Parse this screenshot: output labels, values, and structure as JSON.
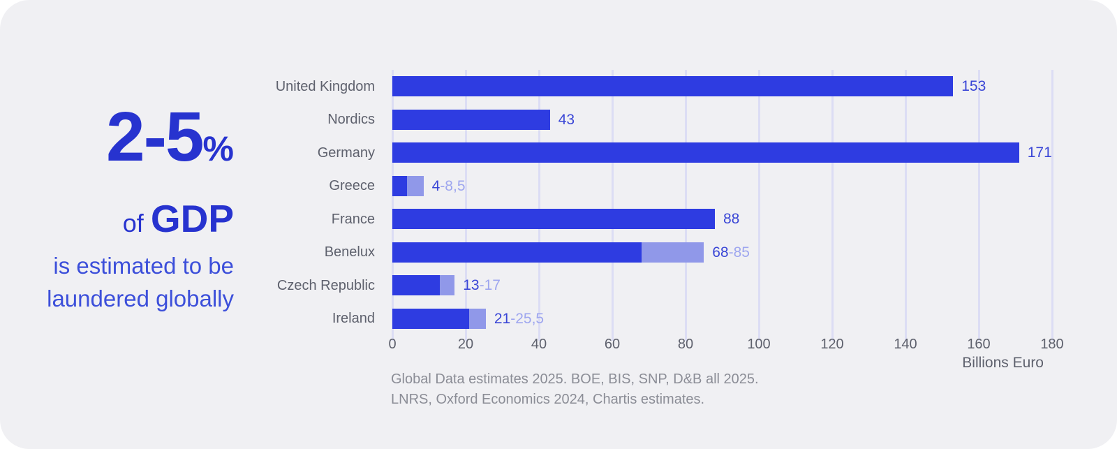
{
  "panel": {
    "headline_value": "2-5",
    "headline_percent": "%",
    "of_label": "of ",
    "gdp_label": "GDP",
    "subline1": "is estimated to be",
    "subline2": "laundered globally"
  },
  "chart_data": {
    "type": "bar",
    "orientation": "horizontal",
    "title": "",
    "xlabel": "Billions Euro",
    "ylabel": "",
    "xlim": [
      0,
      180
    ],
    "xticks": [
      0,
      20,
      40,
      60,
      80,
      100,
      120,
      140,
      160,
      180
    ],
    "grid": true,
    "legend": "none",
    "categories": [
      "United Kingdom",
      "Nordics",
      "Germany",
      "Greece",
      "France",
      "Benelux",
      "Czech Republic",
      "Ireland"
    ],
    "series": [
      {
        "name": "estimate-low",
        "values": [
          153,
          43,
          171,
          4,
          88,
          68,
          13,
          21
        ]
      },
      {
        "name": "estimate-high",
        "values": [
          153,
          43,
          171,
          8.5,
          88,
          85,
          17,
          25.5
        ]
      }
    ],
    "bar_labels": [
      {
        "low": "153",
        "high": ""
      },
      {
        "low": "43",
        "high": ""
      },
      {
        "low": "171",
        "high": ""
      },
      {
        "low": "4",
        "high": "-8,5"
      },
      {
        "low": "88",
        "high": ""
      },
      {
        "low": "68",
        "high": "-85"
      },
      {
        "low": "13",
        "high": "-17"
      },
      {
        "low": "21",
        "high": "-25,5"
      }
    ],
    "source_line1": "Global Data estimates 2025. BOE, BIS, SNP, D&B all 2025.",
    "source_line2": "LNRS, Oxford Economics 2024, Chartis estimates."
  },
  "colors": {
    "bar_primary": "#2e3ce1",
    "bar_range": "#9098e9",
    "gridline": "#dcddf4",
    "headline_blue": "#2733cf",
    "body_blue": "#3c4fda",
    "value_blue": "#3a46d6",
    "value_range_blue": "#9ea6ef",
    "label_gray": "#5e616d",
    "source_gray": "#8b8d96",
    "card_bg": "#f0f0f3"
  }
}
